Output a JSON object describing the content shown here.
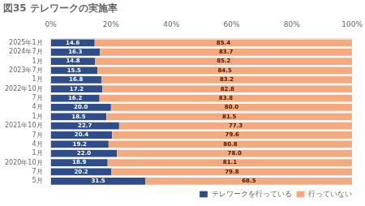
{
  "chart_data": {
    "type": "bar",
    "orientation": "horizontal",
    "stacked": true,
    "title": "図35 テレワークの実施率",
    "categories": [
      "2025年1月",
      "2024年7月",
      "1月",
      "2023年7月",
      "1月",
      "2022年10月",
      "7月",
      "4月",
      "1月",
      "2021年10月",
      "7月",
      "4月",
      "1月",
      "2020年10月",
      "7月",
      "5月"
    ],
    "series": [
      {
        "name": "テレワークを行っている",
        "color": "#2E4D8A",
        "values": [
          14.6,
          16.3,
          14.8,
          15.5,
          16.8,
          17.2,
          16.2,
          20.0,
          18.5,
          22.7,
          20.4,
          19.2,
          22.0,
          18.9,
          20.2,
          31.5
        ],
        "value_labels": [
          "14.6",
          "16.3",
          "14.8",
          "15.5",
          "16.8",
          "17.2",
          "16.2",
          "20.0",
          "18.5",
          "22.7",
          "20.4",
          "19.2",
          "22.0",
          "18.9",
          "20.2",
          "31.5"
        ]
      },
      {
        "name": "行っていない",
        "color": "#F4A97F",
        "values": [
          85.4,
          83.7,
          85.2,
          84.5,
          83.2,
          82.8,
          83.8,
          80.0,
          81.5,
          77.3,
          79.6,
          80.8,
          78.0,
          81.1,
          79.8,
          68.5
        ],
        "value_labels": [
          "85.4",
          "83.7",
          "85.2",
          "84.5",
          "83.2",
          "82.8",
          "83.8",
          "80.0",
          "81.5",
          "77.3",
          "79.6",
          "80.8",
          "78.0",
          "81.1",
          "79.8",
          "68.5"
        ]
      }
    ],
    "xlim": [
      0,
      100
    ],
    "xticks": [
      {
        "value": 0,
        "label": "0%"
      },
      {
        "value": 20,
        "label": "20%"
      },
      {
        "value": 40,
        "label": "40%"
      },
      {
        "value": 60,
        "label": "60%"
      },
      {
        "value": 80,
        "label": "80%"
      },
      {
        "value": 100,
        "label": "100%"
      }
    ],
    "data_labels": true,
    "legend": "lower right",
    "grid": false
  }
}
